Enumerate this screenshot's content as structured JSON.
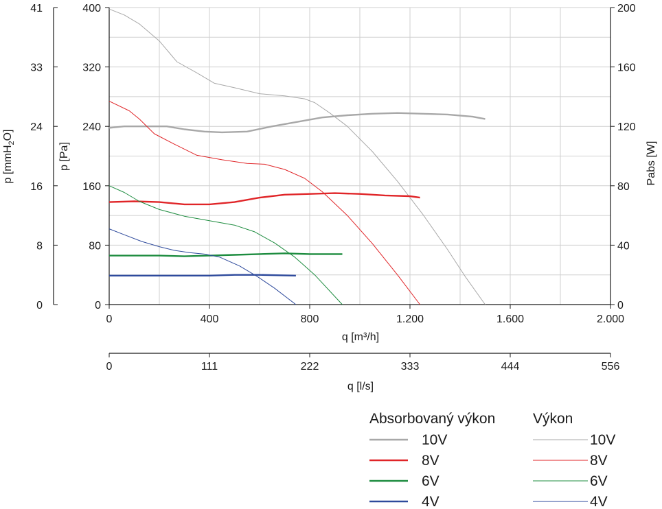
{
  "chart_data": {
    "type": "line",
    "x_axis_flow": {
      "label": "q [m³/h]",
      "range": [
        0,
        2000
      ],
      "ticks": [
        0,
        400,
        800,
        1200,
        1600,
        2000
      ],
      "tick_labels": [
        "0",
        "400",
        "800",
        "1.200",
        "1.600",
        "2.000"
      ]
    },
    "x_axis_flow_ls": {
      "label": "q [l/s]",
      "tick_labels": [
        "0",
        "111",
        "222",
        "333",
        "444",
        "556"
      ]
    },
    "y_axis_pa": {
      "label": "p [Pa]",
      "range": [
        0,
        400
      ],
      "ticks": [
        0,
        80,
        160,
        240,
        320,
        400
      ],
      "tick_labels": [
        "0",
        "80",
        "160",
        "240",
        "320",
        "400"
      ]
    },
    "y_axis_mmh2o": {
      "label_parts": [
        "p [mmH",
        "2",
        "O]"
      ],
      "tick_labels": [
        "0",
        "8",
        "16",
        "24",
        "33",
        "41"
      ]
    },
    "y_axis_watts": {
      "label": "Pabs [W]",
      "range": [
        0,
        200
      ],
      "tick_labels": [
        "0",
        "40",
        "80",
        "120",
        "160",
        "200"
      ]
    },
    "grid": true,
    "legend": {
      "placement": "bottom-right",
      "absorbed_title": "Absorbovaný výkon",
      "pressure_title": "Výkon"
    },
    "series": [
      {
        "name": "10V",
        "color": "#a8a8a8",
        "pressure": [
          [
            0,
            398
          ],
          [
            60,
            390
          ],
          [
            120,
            378
          ],
          [
            200,
            355
          ],
          [
            270,
            327
          ],
          [
            350,
            312
          ],
          [
            420,
            298
          ],
          [
            500,
            292
          ],
          [
            600,
            284
          ],
          [
            700,
            281
          ],
          [
            780,
            277
          ],
          [
            820,
            272
          ],
          [
            880,
            258
          ],
          [
            950,
            240
          ],
          [
            1050,
            206
          ],
          [
            1150,
            166
          ],
          [
            1250,
            122
          ],
          [
            1350,
            74
          ],
          [
            1420,
            38
          ],
          [
            1500,
            0
          ]
        ],
        "power": [
          [
            0,
            119
          ],
          [
            60,
            120
          ],
          [
            150,
            120
          ],
          [
            230,
            120
          ],
          [
            300,
            118
          ],
          [
            380,
            116.5
          ],
          [
            450,
            116
          ],
          [
            550,
            116.5
          ],
          [
            650,
            120
          ],
          [
            750,
            123
          ],
          [
            850,
            126
          ],
          [
            950,
            127.5
          ],
          [
            1050,
            128.5
          ],
          [
            1150,
            129
          ],
          [
            1250,
            128.5
          ],
          [
            1350,
            128
          ],
          [
            1450,
            126.5
          ],
          [
            1500,
            125
          ]
        ]
      },
      {
        "name": "8V",
        "color": "#e02528",
        "pressure": [
          [
            0,
            274
          ],
          [
            80,
            261
          ],
          [
            120,
            250
          ],
          [
            180,
            230
          ],
          [
            260,
            216
          ],
          [
            350,
            201
          ],
          [
            450,
            195
          ],
          [
            550,
            190
          ],
          [
            620,
            189
          ],
          [
            700,
            182
          ],
          [
            780,
            170
          ],
          [
            850,
            152
          ],
          [
            950,
            120
          ],
          [
            1050,
            82
          ],
          [
            1150,
            40
          ],
          [
            1240,
            0
          ]
        ],
        "power": [
          [
            0,
            69
          ],
          [
            100,
            69.5
          ],
          [
            200,
            69
          ],
          [
            300,
            67.5
          ],
          [
            400,
            67.5
          ],
          [
            500,
            69
          ],
          [
            600,
            72
          ],
          [
            700,
            74
          ],
          [
            800,
            74.5
          ],
          [
            900,
            75
          ],
          [
            1000,
            74.5
          ],
          [
            1100,
            73.5
          ],
          [
            1200,
            73
          ],
          [
            1240,
            72
          ]
        ]
      },
      {
        "name": "6V",
        "color": "#1d8c3f",
        "pressure": [
          [
            0,
            160
          ],
          [
            60,
            151
          ],
          [
            120,
            139
          ],
          [
            200,
            128
          ],
          [
            300,
            119
          ],
          [
            400,
            113
          ],
          [
            500,
            107
          ],
          [
            580,
            98
          ],
          [
            660,
            83
          ],
          [
            740,
            64
          ],
          [
            820,
            40
          ],
          [
            930,
            0
          ]
        ],
        "power": [
          [
            0,
            33
          ],
          [
            100,
            33
          ],
          [
            200,
            33
          ],
          [
            300,
            32.5
          ],
          [
            400,
            33
          ],
          [
            500,
            33.5
          ],
          [
            600,
            34
          ],
          [
            700,
            34.5
          ],
          [
            800,
            34
          ],
          [
            930,
            34
          ]
        ]
      },
      {
        "name": "4V",
        "color": "#2e4a9c",
        "pressure": [
          [
            0,
            102
          ],
          [
            60,
            94
          ],
          [
            130,
            85
          ],
          [
            200,
            78
          ],
          [
            260,
            73
          ],
          [
            320,
            70
          ],
          [
            380,
            68
          ],
          [
            440,
            64
          ],
          [
            520,
            52
          ],
          [
            590,
            38
          ],
          [
            660,
            22
          ],
          [
            745,
            0
          ]
        ],
        "power": [
          [
            0,
            19.5
          ],
          [
            100,
            19.5
          ],
          [
            200,
            19.5
          ],
          [
            300,
            19.5
          ],
          [
            400,
            19.5
          ],
          [
            500,
            20
          ],
          [
            600,
            20
          ],
          [
            745,
            19.5
          ]
        ]
      }
    ]
  }
}
